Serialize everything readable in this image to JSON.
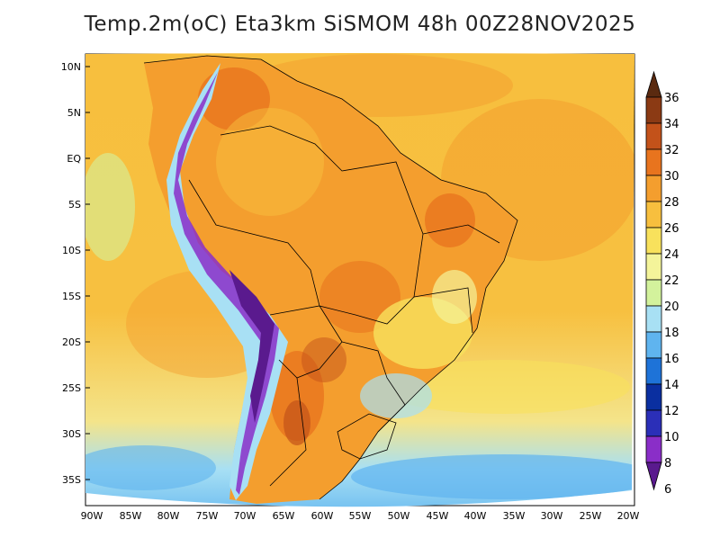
{
  "title": "Temp.2m(oC) Eta3km SiSMOM 48h 00Z28NOV2025",
  "lat_labels": [
    "10N",
    "5N",
    "EQ",
    "5S",
    "10S",
    "15S",
    "20S",
    "25S",
    "30S",
    "35S"
  ],
  "lon_labels": [
    "90W",
    "85W",
    "80W",
    "75W",
    "70W",
    "65W",
    "60W",
    "55W",
    "50W",
    "45W",
    "40W",
    "35W",
    "30W",
    "25W",
    "20W"
  ],
  "colorbar": {
    "ticks": [
      "36",
      "34",
      "32",
      "30",
      "28",
      "26",
      "24",
      "22",
      "20",
      "18",
      "16",
      "14",
      "12",
      "10",
      "8",
      "6"
    ],
    "colors": [
      "#5a2a10",
      "#8b3a14",
      "#c3521a",
      "#e8741e",
      "#f49e2e",
      "#f7bf3e",
      "#f8e15c",
      "#f4f49a",
      "#d3f29c",
      "#a8e0f4",
      "#5fb4ef",
      "#1e73d8",
      "#0a2fa0",
      "#2b2fb8",
      "#8a2ec8",
      "#5a1a8e"
    ]
  }
}
